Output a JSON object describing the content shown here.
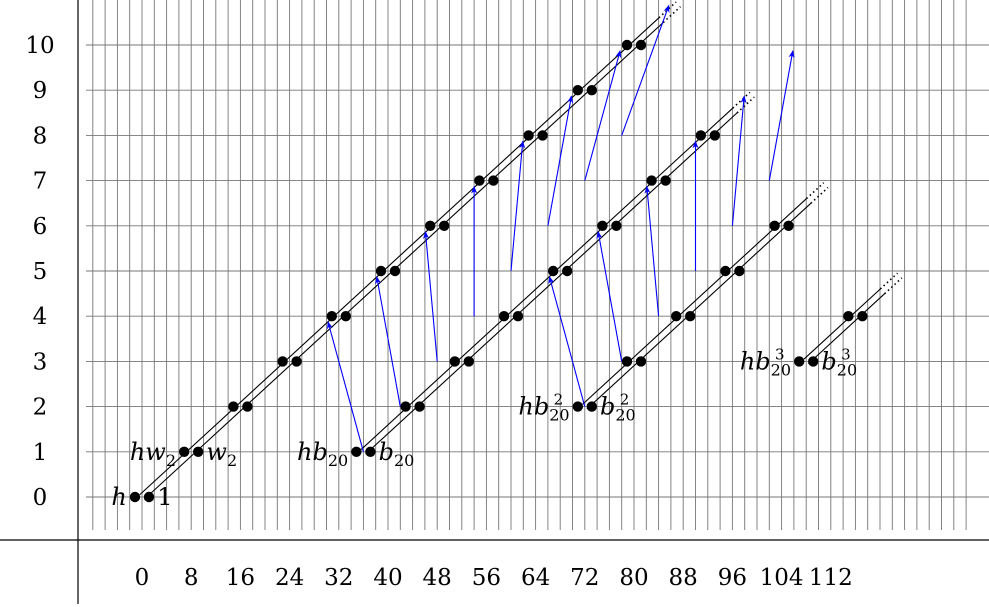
{
  "chart_data": {
    "type": "scatter",
    "title": "",
    "xlabel": "",
    "ylabel": "",
    "x_ticks": [
      0,
      8,
      16,
      24,
      32,
      40,
      48,
      56,
      64,
      72,
      80,
      88,
      96,
      104,
      112
    ],
    "y_ticks": [
      0,
      1,
      2,
      3,
      4,
      5,
      6,
      7,
      8,
      9,
      10
    ],
    "xlim": [
      -11,
      145
    ],
    "ylim": [
      -1.5,
      11
    ],
    "grid": true,
    "diagonal_step": [
      8,
      1
    ],
    "series": [
      {
        "start": [
          0,
          0
        ],
        "end_h": 10,
        "continues": true
      },
      {
        "start": [
          36,
          1
        ],
        "end_h": 7,
        "continues": true
      },
      {
        "start": [
          72,
          2
        ],
        "end_h": 4,
        "continues": true
      },
      {
        "start": [
          108,
          3
        ],
        "end_h": 1,
        "continues": true
      }
    ],
    "labels": [
      {
        "text_parts": [
          "h"
        ],
        "x": 0,
        "y": 0,
        "side": "left"
      },
      {
        "text_parts": [
          "1"
        ],
        "x": 0,
        "y": 0,
        "side": "right"
      },
      {
        "text_parts": [
          "hw",
          "2"
        ],
        "x": 8,
        "y": 1,
        "side": "left"
      },
      {
        "text_parts": [
          "w",
          "2"
        ],
        "x": 8,
        "y": 1,
        "side": "right"
      },
      {
        "text_parts": [
          "hb",
          "20"
        ],
        "x": 36,
        "y": 1,
        "side": "left"
      },
      {
        "text_parts": [
          "b",
          "20"
        ],
        "x": 36,
        "y": 1,
        "side": "right"
      },
      {
        "text_parts": [
          "hb",
          "20",
          "2"
        ],
        "x": 72,
        "y": 2,
        "side": "left"
      },
      {
        "text_parts": [
          "b",
          "20",
          "2"
        ],
        "x": 72,
        "y": 2,
        "side": "right"
      },
      {
        "text_parts": [
          "hb",
          "20",
          "3"
        ],
        "x": 108,
        "y": 3,
        "side": "left"
      },
      {
        "text_parts": [
          "b",
          "20",
          "3"
        ],
        "x": 108,
        "y": 3,
        "side": "right"
      }
    ],
    "arrows": [
      {
        "from": [
          36,
          1
        ],
        "to": [
          30,
          4
        ]
      },
      {
        "from": [
          42,
          2
        ],
        "to": [
          38,
          5
        ]
      },
      {
        "from": [
          48,
          3
        ],
        "to": [
          46,
          6
        ]
      },
      {
        "from": [
          54,
          4
        ],
        "to": [
          54,
          7
        ]
      },
      {
        "from": [
          60,
          5
        ],
        "to": [
          62,
          8
        ]
      },
      {
        "from": [
          66,
          6
        ],
        "to": [
          70,
          9
        ]
      },
      {
        "from": [
          72,
          7
        ],
        "to": [
          78,
          10
        ]
      },
      {
        "from": [
          78,
          8
        ],
        "to": [
          86,
          11
        ]
      },
      {
        "from": [
          72,
          2
        ],
        "to": [
          66,
          5
        ]
      },
      {
        "from": [
          78,
          3
        ],
        "to": [
          74,
          6
        ]
      },
      {
        "from": [
          84,
          4
        ],
        "to": [
          82,
          7
        ]
      },
      {
        "from": [
          90,
          5
        ],
        "to": [
          90,
          8
        ]
      },
      {
        "from": [
          96,
          6
        ],
        "to": [
          98,
          9
        ]
      },
      {
        "from": [
          102,
          7
        ],
        "to": [
          106,
          10
        ]
      }
    ],
    "colors": {
      "lines": "#000000",
      "dots": "#000000",
      "arrows": "#0000ff",
      "grid": "#777777"
    }
  }
}
